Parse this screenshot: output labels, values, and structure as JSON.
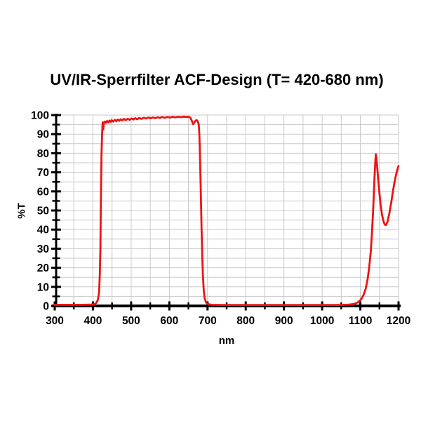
{
  "chart_data": {
    "type": "line",
    "title": "UV/IR-Sperrfilter ACF-Design (T= 420-680 nm)",
    "xlabel": "nm",
    "ylabel": "%T",
    "xlim": [
      300,
      1200
    ],
    "ylim": [
      0,
      100
    ],
    "x_major_ticks": [
      300,
      400,
      500,
      600,
      700,
      800,
      900,
      1000,
      1100,
      1200
    ],
    "x_minor_step": 50,
    "y_major_ticks": [
      0,
      10,
      20,
      30,
      40,
      50,
      60,
      70,
      80,
      90,
      100
    ],
    "y_minor_step": 5,
    "grid": {
      "vertical_step_nm": 50,
      "horizontal_step_pct": 5,
      "color": "#c8c8c8",
      "on": true
    },
    "axis_color": "#000000",
    "legend": "none",
    "series": [
      {
        "name": "transmission",
        "color": "#ec1414",
        "points": [
          [
            300,
            0.6
          ],
          [
            325,
            0.6
          ],
          [
            350,
            0.6
          ],
          [
            375,
            0.6
          ],
          [
            395,
            0.7
          ],
          [
            404,
            0.9
          ],
          [
            409,
            1.6
          ],
          [
            413,
            3.2
          ],
          [
            416,
            7
          ],
          [
            418,
            16
          ],
          [
            419.5,
            30
          ],
          [
            420.5,
            50
          ],
          [
            421.5,
            67
          ],
          [
            422.5,
            80
          ],
          [
            424,
            90
          ],
          [
            425.5,
            96.2
          ],
          [
            427,
            92.4
          ],
          [
            428.5,
            95.7
          ],
          [
            431,
            96.6
          ],
          [
            434,
            95.9
          ],
          [
            437,
            96.9
          ],
          [
            440,
            96.2
          ],
          [
            443,
            97.1
          ],
          [
            446,
            96.4
          ],
          [
            449,
            97.3
          ],
          [
            453,
            96.6
          ],
          [
            457,
            97.5
          ],
          [
            461,
            96.8
          ],
          [
            465,
            97.7
          ],
          [
            469,
            97.0
          ],
          [
            473,
            97.8
          ],
          [
            477,
            97.2
          ],
          [
            481,
            98.0
          ],
          [
            486,
            97.3
          ],
          [
            491,
            98.1
          ],
          [
            496,
            97.5
          ],
          [
            501,
            98.2
          ],
          [
            506,
            97.7
          ],
          [
            511,
            98.4
          ],
          [
            516,
            97.8
          ],
          [
            521,
            98.5
          ],
          [
            527,
            98.0
          ],
          [
            533,
            98.6
          ],
          [
            539,
            98.2
          ],
          [
            545,
            98.7
          ],
          [
            551,
            98.3
          ],
          [
            557,
            98.8
          ],
          [
            563,
            98.4
          ],
          [
            569,
            98.9
          ],
          [
            575,
            98.5
          ],
          [
            581,
            99.0
          ],
          [
            588,
            98.6
          ],
          [
            595,
            99.0
          ],
          [
            602,
            98.7
          ],
          [
            609,
            99.1
          ],
          [
            616,
            98.8
          ],
          [
            623,
            99.1
          ],
          [
            630,
            98.9
          ],
          [
            637,
            99.2
          ],
          [
            644,
            99.0
          ],
          [
            650,
            99.1
          ],
          [
            655,
            98.6
          ],
          [
            659,
            96.9
          ],
          [
            662,
            95.3
          ],
          [
            665,
            95.9
          ],
          [
            668,
            96.9
          ],
          [
            671,
            97.4
          ],
          [
            674,
            96.9
          ],
          [
            677,
            95.1
          ],
          [
            678.5,
            90
          ],
          [
            680,
            80
          ],
          [
            681.5,
            68
          ],
          [
            683,
            54
          ],
          [
            684.5,
            40
          ],
          [
            686,
            27
          ],
          [
            688,
            16
          ],
          [
            690,
            8.5
          ],
          [
            692.5,
            4
          ],
          [
            696,
            1.8
          ],
          [
            701,
            1.0
          ],
          [
            710,
            0.6
          ],
          [
            740,
            0.5
          ],
          [
            780,
            0.5
          ],
          [
            820,
            0.5
          ],
          [
            860,
            0.5
          ],
          [
            900,
            0.5
          ],
          [
            940,
            0.5
          ],
          [
            980,
            0.5
          ],
          [
            1020,
            0.5
          ],
          [
            1050,
            0.5
          ],
          [
            1070,
            0.7
          ],
          [
            1083,
            1.0
          ],
          [
            1093,
            1.8
          ],
          [
            1101,
            3.2
          ],
          [
            1108,
            5.5
          ],
          [
            1114,
            9
          ],
          [
            1119,
            14
          ],
          [
            1123,
            20
          ],
          [
            1127,
            28
          ],
          [
            1130,
            37
          ],
          [
            1133,
            48
          ],
          [
            1135,
            57
          ],
          [
            1137,
            67
          ],
          [
            1139,
            75
          ],
          [
            1140.5,
            79.5
          ],
          [
            1142,
            78
          ],
          [
            1144,
            73
          ],
          [
            1147,
            66
          ],
          [
            1150,
            59
          ],
          [
            1153,
            53
          ],
          [
            1157,
            47.5
          ],
          [
            1161,
            44
          ],
          [
            1164,
            42.6
          ],
          [
            1167,
            42.4
          ],
          [
            1171,
            44
          ],
          [
            1176,
            48.5
          ],
          [
            1181,
            54.5
          ],
          [
            1186,
            61
          ],
          [
            1191,
            66.5
          ],
          [
            1195,
            70
          ],
          [
            1198,
            72.2
          ],
          [
            1200,
            73.3
          ]
        ]
      }
    ]
  }
}
